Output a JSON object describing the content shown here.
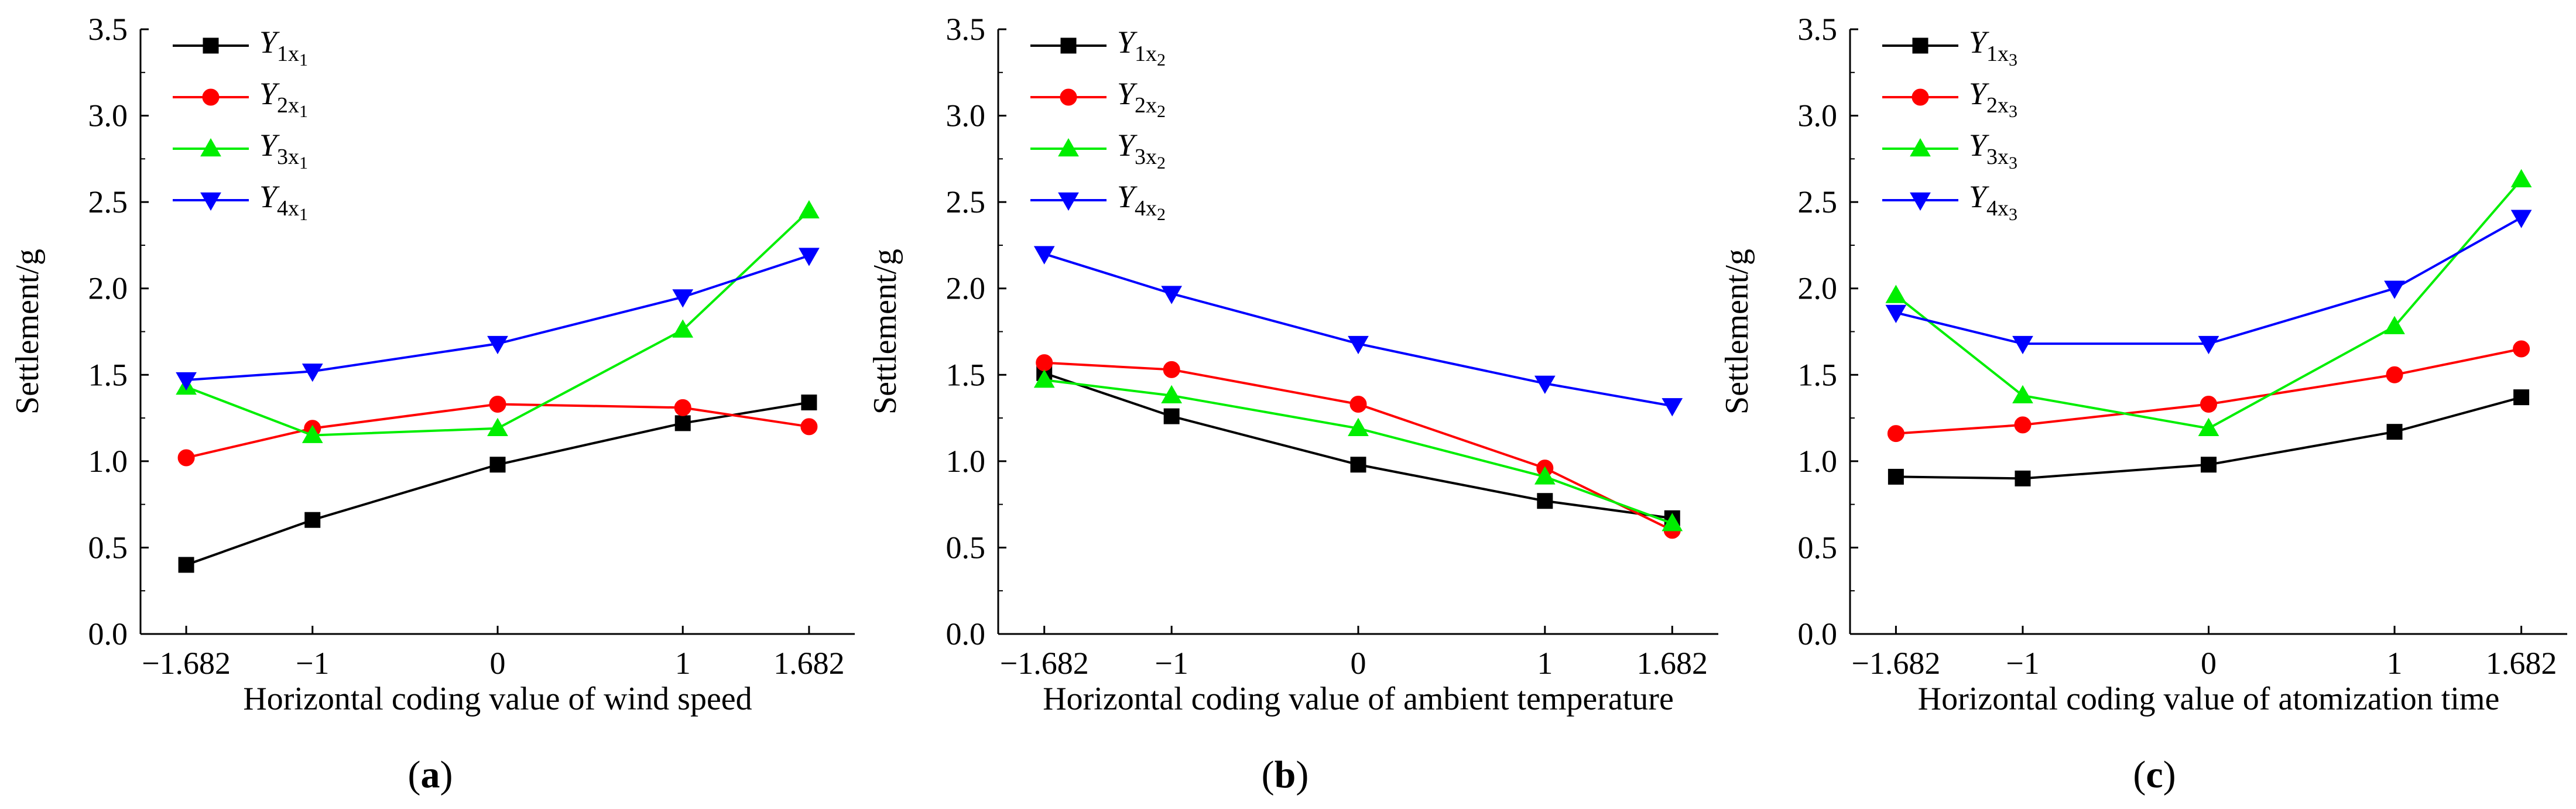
{
  "figure": {
    "colors": {
      "Y1": "#000000",
      "Y2": "#ff0000",
      "Y3": "#00ee00",
      "Y4": "#0000ff"
    }
  },
  "chart_data": [
    {
      "type": "line",
      "caption": {
        "open": "(",
        "letter": "a",
        "close": ")"
      },
      "xlabel": "Horizontal coding value of wind speed",
      "ylabel": "Settlement/g",
      "categories": [
        "−1.682",
        "−1",
        "0",
        "1",
        "1.682"
      ],
      "x": [
        -1.682,
        -1,
        0,
        1,
        1.682
      ],
      "ylim": [
        0,
        3.5
      ],
      "yticks": [
        "0.0",
        "0.5",
        "1.0",
        "1.5",
        "2.0",
        "2.5",
        "3.0",
        "3.5"
      ],
      "legend_position": "top-left",
      "series": [
        {
          "name": "Y",
          "num": "1",
          "sub": "x",
          "subsub": "1",
          "marker": "square",
          "color": "#000000",
          "values": [
            0.4,
            0.66,
            0.98,
            1.22,
            1.34
          ]
        },
        {
          "name": "Y",
          "num": "2",
          "sub": "x",
          "subsub": "1",
          "marker": "circle",
          "color": "#ff0000",
          "values": [
            1.02,
            1.19,
            1.33,
            1.31,
            1.2
          ]
        },
        {
          "name": "Y",
          "num": "3",
          "sub": "x",
          "subsub": "1",
          "marker": "triangle-up",
          "color": "#00ee00",
          "values": [
            1.43,
            1.15,
            1.19,
            1.76,
            2.45
          ]
        },
        {
          "name": "Y",
          "num": "4",
          "sub": "x",
          "subsub": "1",
          "marker": "triangle-down",
          "color": "#0000ff",
          "values": [
            1.47,
            1.52,
            1.68,
            1.95,
            2.19
          ]
        }
      ]
    },
    {
      "type": "line",
      "caption": {
        "open": "(",
        "letter": "b",
        "close": ")"
      },
      "xlabel": "Horizontal coding value of ambient temperature",
      "ylabel": "Settlement/g",
      "categories": [
        "−1.682",
        "−1",
        "0",
        "1",
        "1.682"
      ],
      "x": [
        -1.682,
        -1,
        0,
        1,
        1.682
      ],
      "ylim": [
        0,
        3.5
      ],
      "yticks": [
        "0.0",
        "0.5",
        "1.0",
        "1.5",
        "2.0",
        "2.5",
        "3.0",
        "3.5"
      ],
      "legend_position": "top-left",
      "series": [
        {
          "name": "Y",
          "num": "1",
          "sub": "x",
          "subsub": "2",
          "marker": "square",
          "color": "#000000",
          "values": [
            1.51,
            1.26,
            0.98,
            0.77,
            0.67
          ]
        },
        {
          "name": "Y",
          "num": "2",
          "sub": "x",
          "subsub": "2",
          "marker": "circle",
          "color": "#ff0000",
          "values": [
            1.57,
            1.53,
            1.33,
            0.96,
            0.6
          ]
        },
        {
          "name": "Y",
          "num": "3",
          "sub": "x",
          "subsub": "2",
          "marker": "triangle-up",
          "color": "#00ee00",
          "values": [
            1.47,
            1.38,
            1.19,
            0.91,
            0.64
          ]
        },
        {
          "name": "Y",
          "num": "4",
          "sub": "x",
          "subsub": "2",
          "marker": "triangle-down",
          "color": "#0000ff",
          "values": [
            2.2,
            1.97,
            1.68,
            1.45,
            1.32
          ]
        }
      ]
    },
    {
      "type": "line",
      "caption": {
        "open": "(",
        "letter": "c",
        "close": ")"
      },
      "xlabel": "Horizontal coding value of atomization time",
      "ylabel": "Settlement/g",
      "categories": [
        "−1.682",
        "−1",
        "0",
        "1",
        "1.682"
      ],
      "x": [
        -1.682,
        -1,
        0,
        1,
        1.682
      ],
      "ylim": [
        0,
        3.5
      ],
      "yticks": [
        "0.0",
        "0.5",
        "1.0",
        "1.5",
        "2.0",
        "2.5",
        "3.0",
        "3.5"
      ],
      "legend_position": "top-left",
      "series": [
        {
          "name": "Y",
          "num": "1",
          "sub": "x",
          "subsub": "3",
          "marker": "square",
          "color": "#000000",
          "values": [
            0.91,
            0.9,
            0.98,
            1.17,
            1.37
          ]
        },
        {
          "name": "Y",
          "num": "2",
          "sub": "x",
          "subsub": "3",
          "marker": "circle",
          "color": "#ff0000",
          "values": [
            1.16,
            1.21,
            1.33,
            1.5,
            1.65
          ]
        },
        {
          "name": "Y",
          "num": "3",
          "sub": "x",
          "subsub": "3",
          "marker": "triangle-up",
          "color": "#00ee00",
          "values": [
            1.96,
            1.38,
            1.19,
            1.78,
            2.63
          ]
        },
        {
          "name": "Y",
          "num": "4",
          "sub": "x",
          "subsub": "3",
          "marker": "triangle-down",
          "color": "#0000ff",
          "values": [
            1.86,
            1.68,
            1.68,
            2.0,
            2.41
          ]
        }
      ]
    }
  ]
}
